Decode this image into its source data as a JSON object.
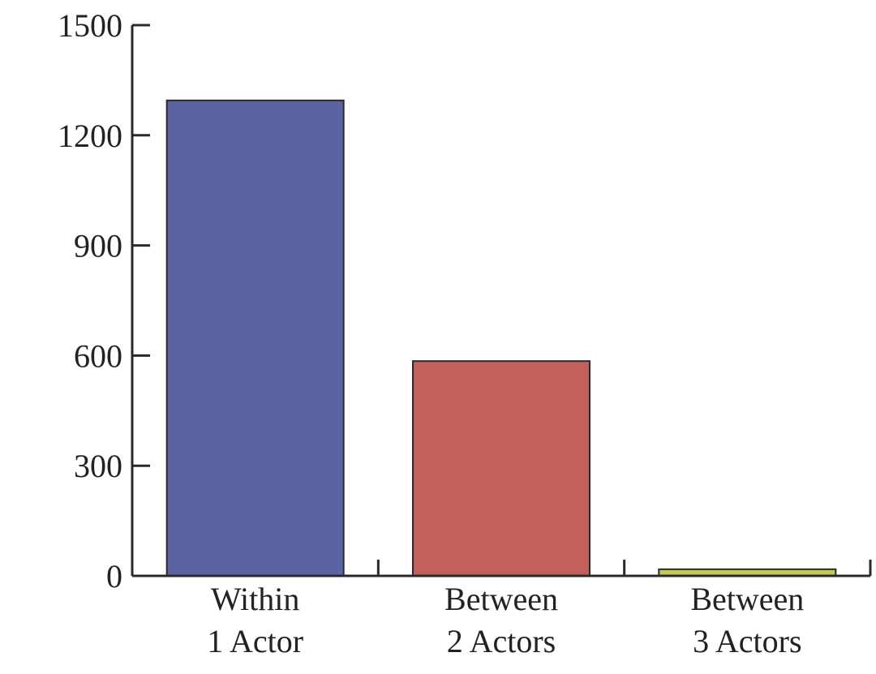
{
  "chart_data": {
    "type": "bar",
    "categories": [
      [
        "Within",
        "1 Actor"
      ],
      [
        "Between",
        "2 Actors"
      ],
      [
        "Between",
        "3 Actors"
      ]
    ],
    "values": [
      1295,
      585,
      18
    ],
    "colors": [
      "#5b64a3",
      "#c4605c",
      "#c8c654"
    ],
    "ylim": [
      0,
      1500
    ],
    "yticks": [
      "0",
      "300",
      "600",
      "900",
      "1200",
      "1500"
    ],
    "xlabel": "",
    "ylabel": "",
    "title": "",
    "grid": false,
    "legend": "none"
  }
}
